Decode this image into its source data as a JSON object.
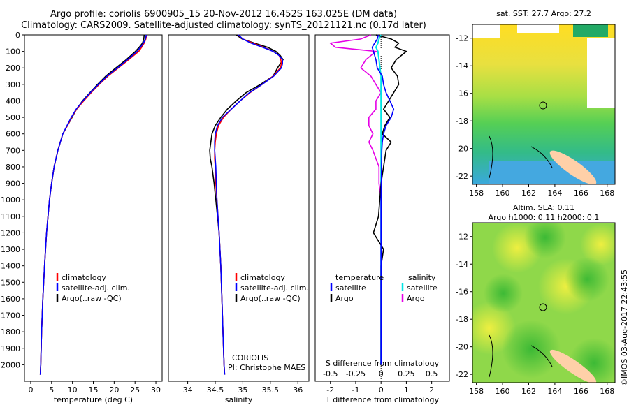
{
  "header": {
    "line1": "Argo profile: coriolis 6900905_15 20-Nov-2012 16.452S 163.025E (DM data)",
    "line2": "Climatology: CARS2009. Satellite-adjusted climatology: synTS_20121121.nc (0.17d later)"
  },
  "colors": {
    "climatology": "#ff0000",
    "satellite": "#0000ff",
    "argo": "#000000",
    "salinity_satellite": "#00e5e5",
    "salinity_argo": "#e600e6"
  },
  "legends": {
    "climatology": "climatology",
    "satellite_adj": "satellite-adj. clim.",
    "argo_raw": "Argo(..raw -QC)",
    "diff_temperature": "temperature",
    "diff_salinity": "salinity",
    "diff_satellite": "satellite",
    "diff_argo": "Argo"
  },
  "annotations": {
    "institution": "CORIOLIS",
    "pi": "PI: Christophe MAES"
  },
  "maps": {
    "sst_title": "sat. SST: 27.7 Argo: 27.2",
    "sla_title_line1": "Altim. SLA: 0.11",
    "sla_title_line2": "Argo h1000: 0.11 h2000: 0.1",
    "lat_ticks": [
      "-12",
      "-14",
      "-16",
      "-18",
      "-20",
      "-22"
    ],
    "lon_ticks": [
      "158",
      "160",
      "162",
      "164",
      "166",
      "168"
    ],
    "float_position": "16.452S 163.025E"
  },
  "stamp": "©IMOS 03-Aug-2017 22:43:55",
  "chart_data": [
    {
      "type": "line",
      "xlabel": "temperature (deg C)",
      "ylabel": "",
      "xlim": [
        -1.5,
        31.5
      ],
      "ylim": [
        2100,
        0
      ],
      "x_ticks": [
        "0",
        "5",
        "10",
        "15",
        "20",
        "25",
        "30"
      ],
      "y_ticks": [
        "0",
        "100",
        "200",
        "300",
        "400",
        "500",
        "600",
        "700",
        "800",
        "900",
        "1000",
        "1100",
        "1200",
        "1300",
        "1400",
        "1500",
        "1600",
        "1700",
        "1800",
        "1900",
        "2000"
      ],
      "depth": [
        0,
        25,
        50,
        75,
        100,
        150,
        200,
        250,
        300,
        350,
        400,
        450,
        500,
        550,
        600,
        700,
        800,
        900,
        1000,
        1200,
        1400,
        1600,
        1800,
        2000,
        2060
      ],
      "series": [
        {
          "name": "climatology",
          "values": [
            27.8,
            27.6,
            27.2,
            26.6,
            25.9,
            23.5,
            21.0,
            18.5,
            16.4,
            14.5,
            12.7,
            11.0,
            9.8,
            8.8,
            7.7,
            6.5,
            5.6,
            5.0,
            4.5,
            3.8,
            3.3,
            2.9,
            2.6,
            2.4,
            2.3
          ]
        },
        {
          "name": "satellite-adj. clim.",
          "values": [
            27.7,
            27.5,
            27.0,
            26.3,
            25.5,
            23.2,
            20.8,
            18.3,
            16.2,
            14.3,
            12.5,
            10.9,
            9.7,
            8.7,
            7.7,
            6.5,
            5.6,
            5.0,
            4.5,
            3.8,
            3.3,
            2.9,
            2.6,
            2.4,
            2.3
          ]
        },
        {
          "name": "Argo(..raw -QC)",
          "values": [
            27.2,
            27.1,
            26.8,
            26.0,
            25.1,
            22.9,
            20.4,
            18.0,
            16.0,
            14.2,
            12.4,
            11.0,
            9.9,
            8.8,
            7.7,
            6.5,
            5.6,
            5.0,
            4.5,
            3.8,
            3.3,
            2.9,
            2.6,
            2.4,
            2.3
          ]
        }
      ]
    },
    {
      "type": "line",
      "xlabel": "salinity",
      "ylabel": "",
      "xlim": [
        33.65,
        36.2
      ],
      "ylim": [
        2100,
        0
      ],
      "x_ticks": [
        "34",
        "34.5",
        "35",
        "35.5",
        "36"
      ],
      "depth": [
        0,
        25,
        50,
        75,
        100,
        125,
        150,
        175,
        200,
        250,
        300,
        350,
        400,
        450,
        500,
        550,
        600,
        650,
        700,
        750,
        800,
        900,
        1000,
        1100,
        1200,
        1400,
        1600,
        1800,
        2000,
        2060
      ],
      "series": [
        {
          "name": "climatology",
          "values": [
            34.91,
            35.0,
            35.18,
            35.38,
            35.55,
            35.66,
            35.69,
            35.7,
            35.68,
            35.55,
            35.35,
            35.13,
            34.95,
            34.79,
            34.65,
            34.56,
            34.52,
            34.5,
            34.49,
            34.49,
            34.5,
            34.51,
            34.53,
            34.55,
            34.57,
            34.6,
            34.62,
            34.64,
            34.66,
            34.67
          ]
        },
        {
          "name": "satellite-adj. clim.",
          "values": [
            34.92,
            35.0,
            35.15,
            35.36,
            35.55,
            35.66,
            35.72,
            35.72,
            35.7,
            35.56,
            35.35,
            35.12,
            34.95,
            34.79,
            34.63,
            34.54,
            34.5,
            34.49,
            34.49,
            34.5,
            34.51,
            34.52,
            34.53,
            34.55,
            34.57,
            34.6,
            34.62,
            34.64,
            34.66,
            34.67
          ]
        },
        {
          "name": "Argo(..raw -QC)",
          "values": [
            34.88,
            34.99,
            35.21,
            35.45,
            35.6,
            35.68,
            35.73,
            35.68,
            35.63,
            35.55,
            35.32,
            35.06,
            34.88,
            34.72,
            34.6,
            34.5,
            34.44,
            34.42,
            34.4,
            34.41,
            34.44,
            34.48,
            34.51,
            34.54,
            34.57,
            34.6,
            34.62,
            34.64,
            34.66,
            34.67
          ]
        }
      ]
    },
    {
      "type": "line",
      "xlabel": "T difference from climatology",
      "title": "S difference from climatology",
      "xlim": [
        -2.6,
        2.7
      ],
      "ylim": [
        2100,
        0
      ],
      "x_ticks_T": [
        "-2",
        "-1",
        "0",
        "1",
        "2"
      ],
      "x_ticks_S": [
        "-0.5",
        "-0.25",
        "0",
        "0.25",
        "0.5"
      ],
      "temperature": {
        "depth": [
          0,
          25,
          50,
          75,
          100,
          150,
          200,
          250,
          300,
          350,
          400,
          450,
          500,
          550,
          600,
          650,
          700,
          800,
          900,
          1000,
          1100,
          1200,
          1300,
          1400,
          1600,
          1800,
          2000
        ],
        "series": [
          {
            "name": "satellite",
            "values": [
              -0.1,
              -0.15,
              -0.25,
              -0.35,
              -0.3,
              -0.2,
              -0.15,
              0.05,
              0.1,
              0.2,
              0.35,
              0.5,
              0.4,
              0.2,
              0.1,
              0.05,
              0.03,
              0.02,
              0.01,
              0,
              0,
              0,
              0,
              0,
              0,
              0,
              0
            ]
          },
          {
            "name": "Argo",
            "values": [
              -0.2,
              0.4,
              0.7,
              0.55,
              1.0,
              0.6,
              0.4,
              0.65,
              0.7,
              0.5,
              0.3,
              0.1,
              0.35,
              0.15,
              0.05,
              0.4,
              0.2,
              0.1,
              0.0,
              -0.05,
              -0.1,
              -0.3,
              0.1,
              0.0,
              0.0,
              0.0,
              0.0
            ]
          }
        ]
      },
      "salinity": {
        "depth": [
          0,
          25,
          50,
          75,
          100,
          150,
          200,
          250,
          300,
          350,
          400,
          450,
          500,
          550,
          600,
          650,
          700,
          750,
          800,
          900,
          1000,
          1200,
          1400,
          1600,
          1800,
          2000
        ],
        "series": [
          {
            "name": "satellite",
            "values": [
              0.0,
              -0.02,
              -0.03,
              -0.05,
              -0.03,
              -0.02,
              -0.01,
              0,
              0,
              0,
              0,
              0,
              0,
              0,
              0,
              0,
              0,
              0,
              0,
              0,
              0,
              0,
              0,
              0,
              0,
              0
            ]
          },
          {
            "name": "Argo",
            "values": [
              -0.1,
              -0.2,
              -0.5,
              -0.45,
              -0.05,
              -0.15,
              -0.2,
              -0.1,
              -0.05,
              0.0,
              -0.05,
              -0.05,
              -0.12,
              -0.12,
              -0.08,
              -0.12,
              -0.08,
              -0.05,
              -0.02,
              -0.02,
              0.0,
              0.0,
              0.0,
              0.0,
              0.0,
              0.0
            ]
          }
        ]
      }
    }
  ]
}
